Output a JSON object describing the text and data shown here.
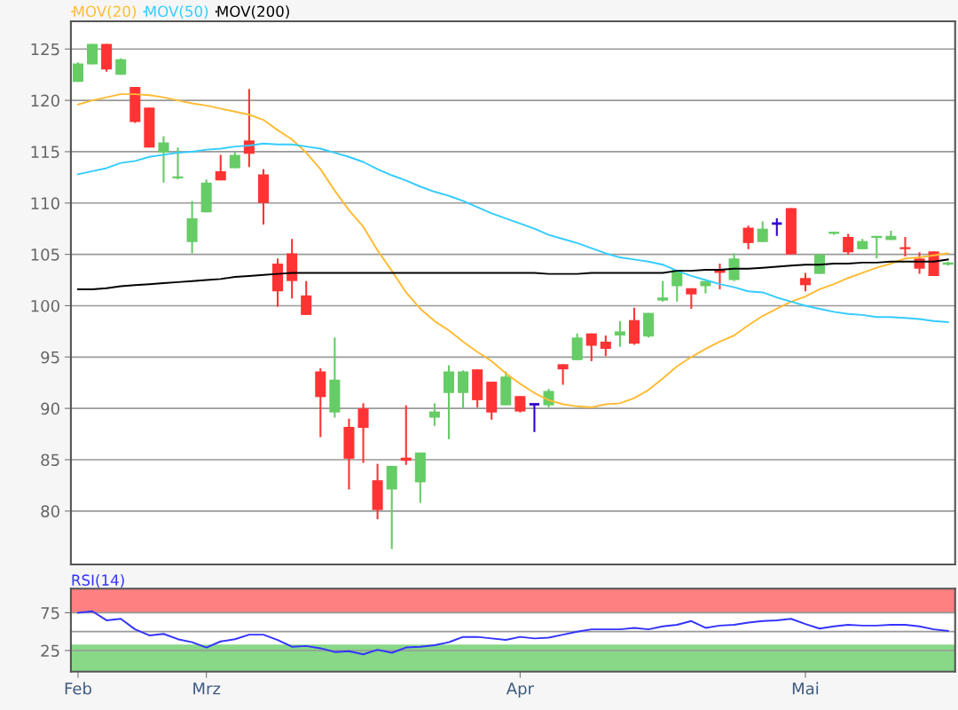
{
  "chart_data": [
    {
      "type": "candlestick",
      "legend": "top left",
      "grid": "y",
      "tick_labels": "y",
      "ylim": [
        74.8,
        127.7
      ],
      "yticks": [
        80,
        85,
        90,
        95,
        100,
        105,
        110,
        115,
        120,
        125
      ],
      "ohlc": [
        [
          121.8,
          123.7,
          121.8,
          123.6
        ],
        [
          123.5,
          125.5,
          123.5,
          125.5
        ],
        [
          125.5,
          125.5,
          122.8,
          123.0
        ],
        [
          122.5,
          124.1,
          122.5,
          124.0
        ],
        [
          121.3,
          121.3,
          117.8,
          117.9
        ],
        [
          119.3,
          119.3,
          115.4,
          115.4
        ],
        [
          114.9,
          116.5,
          112.0,
          115.9
        ],
        [
          112.4,
          115.4,
          112.3,
          112.6
        ],
        [
          106.2,
          110.2,
          105.1,
          108.5
        ],
        [
          109.1,
          112.3,
          109.1,
          112.0
        ],
        [
          113.1,
          114.7,
          112.2,
          112.2
        ],
        [
          113.4,
          115.0,
          113.4,
          114.7
        ],
        [
          116.1,
          121.1,
          113.5,
          114.8
        ],
        [
          112.8,
          113.3,
          107.9,
          110.0
        ],
        [
          104.1,
          104.6,
          99.9,
          101.4
        ],
        [
          105.1,
          106.5,
          100.7,
          102.4
        ],
        [
          101.0,
          102.4,
          99.1,
          99.1
        ],
        [
          93.6,
          93.9,
          87.2,
          91.1
        ],
        [
          89.6,
          96.9,
          89.1,
          92.8
        ],
        [
          88.2,
          89.0,
          82.1,
          85.1
        ],
        [
          90.0,
          90.5,
          84.7,
          88.1
        ],
        [
          83.0,
          84.6,
          79.2,
          80.1
        ],
        [
          82.1,
          84.4,
          76.3,
          84.4
        ],
        [
          85.2,
          90.3,
          84.5,
          84.9
        ],
        [
          82.8,
          85.7,
          80.8,
          85.7
        ],
        [
          89.1,
          90.5,
          88.3,
          89.7
        ],
        [
          91.5,
          94.2,
          87.0,
          93.6
        ],
        [
          91.5,
          93.7,
          90.0,
          93.6
        ],
        [
          93.8,
          93.8,
          90.1,
          90.8
        ],
        [
          92.6,
          92.6,
          88.9,
          89.6
        ],
        [
          90.3,
          93.6,
          90.3,
          93.1
        ],
        [
          91.2,
          91.2,
          89.6,
          89.7
        ],
        [
          90.4,
          90.4,
          87.7,
          90.4
        ],
        [
          90.3,
          91.9,
          90.1,
          91.7
        ],
        [
          94.3,
          94.3,
          92.3,
          93.8
        ],
        [
          94.7,
          97.3,
          94.7,
          96.9
        ],
        [
          97.3,
          97.3,
          94.6,
          96.1
        ],
        [
          96.5,
          97.1,
          95.1,
          95.8
        ],
        [
          97.1,
          98.5,
          96.0,
          97.5
        ],
        [
          98.6,
          99.8,
          96.2,
          96.3
        ],
        [
          97.0,
          99.3,
          96.9,
          99.3
        ],
        [
          100.5,
          102.4,
          100.4,
          100.8
        ],
        [
          101.9,
          103.5,
          100.4,
          103.5
        ],
        [
          101.7,
          101.7,
          99.7,
          101.1
        ],
        [
          101.9,
          102.4,
          101.2,
          102.4
        ],
        [
          103.5,
          104.1,
          101.6,
          103.2
        ],
        [
          102.5,
          105.1,
          102.4,
          104.6
        ],
        [
          107.6,
          107.8,
          105.5,
          106.1
        ],
        [
          106.2,
          108.2,
          106.2,
          107.5
        ],
        [
          108.0,
          108.5,
          106.8,
          108.0
        ],
        [
          109.5,
          109.5,
          105.0,
          105.0
        ],
        [
          102.7,
          103.2,
          101.4,
          102.0
        ],
        [
          103.1,
          105.0,
          103.1,
          105.0
        ],
        [
          107.0,
          107.2,
          106.9,
          107.2
        ],
        [
          106.7,
          107.0,
          105.0,
          105.2
        ],
        [
          105.5,
          106.5,
          105.5,
          106.3
        ],
        [
          106.6,
          106.8,
          104.6,
          106.8
        ],
        [
          106.4,
          107.3,
          106.4,
          106.8
        ],
        [
          105.7,
          106.7,
          104.8,
          105.5
        ],
        [
          104.6,
          105.2,
          103.1,
          103.6
        ],
        [
          105.3,
          105.3,
          102.9,
          102.9
        ],
        [
          104.0,
          104.3,
          103.9,
          104.2
        ]
      ],
      "colors": [
        "#66cc66",
        "#66cc66",
        "#ff3333",
        "#66cc66",
        "#ff3333",
        "#ff3333",
        "#66cc66",
        "#66cc66",
        "#66cc66",
        "#66cc66",
        "#ff3333",
        "#66cc66",
        "#ff3333",
        "#ff3333",
        "#ff3333",
        "#ff3333",
        "#ff3333",
        "#ff3333",
        "#66cc66",
        "#ff3333",
        "#ff3333",
        "#ff3333",
        "#66cc66",
        "#ff3333",
        "#66cc66",
        "#66cc66",
        "#66cc66",
        "#66cc66",
        "#ff3333",
        "#ff3333",
        "#66cc66",
        "#ff3333",
        "#3300cc",
        "#66cc66",
        "#ff3333",
        "#66cc66",
        "#ff3333",
        "#ff3333",
        "#66cc66",
        "#ff3333",
        "#66cc66",
        "#66cc66",
        "#66cc66",
        "#ff3333",
        "#66cc66",
        "#ff3333",
        "#66cc66",
        "#ff3333",
        "#66cc66",
        "#3300cc",
        "#ff3333",
        "#ff3333",
        "#66cc66",
        "#66cc66",
        "#ff3333",
        "#66cc66",
        "#66cc66",
        "#66cc66",
        "#ff3333",
        "#ff3333",
        "#ff3333",
        "#66cc66"
      ],
      "series": [
        {
          "name": "MOV(20)",
          "type": "line",
          "color": "#ffbb33",
          "values": [
            119.6,
            120.0,
            120.3,
            120.6,
            120.6,
            120.5,
            120.3,
            120.0,
            119.7,
            119.5,
            119.2,
            118.9,
            118.6,
            118.1,
            117.1,
            116.2,
            114.9,
            113.3,
            111.2,
            109.3,
            107.7,
            105.4,
            103.4,
            101.3,
            99.7,
            98.5,
            97.6,
            96.5,
            95.5,
            94.6,
            93.4,
            92.4,
            91.5,
            90.8,
            90.4,
            90.2,
            90.1,
            90.4,
            90.5,
            91.0,
            91.8,
            92.9,
            94.1,
            95.0,
            95.8,
            96.5,
            97.1,
            98.1,
            99.0,
            99.7,
            100.4,
            100.9,
            101.6,
            102.1,
            102.7,
            103.2,
            103.7,
            104.1,
            104.6,
            104.7,
            104.9,
            105.1
          ]
        },
        {
          "name": "MOV(50)",
          "type": "line",
          "color": "#33ccff",
          "values": [
            112.8,
            113.1,
            113.4,
            113.9,
            114.1,
            114.5,
            114.7,
            114.9,
            115.0,
            115.2,
            115.3,
            115.5,
            115.6,
            115.8,
            115.7,
            115.7,
            115.5,
            115.3,
            114.9,
            114.5,
            114.0,
            113.3,
            112.7,
            112.2,
            111.6,
            111.1,
            110.7,
            110.2,
            109.6,
            109.0,
            108.5,
            108.0,
            107.5,
            106.9,
            106.5,
            106.1,
            105.6,
            105.1,
            104.7,
            104.5,
            104.3,
            104.0,
            103.4,
            102.9,
            102.5,
            102.1,
            101.8,
            101.4,
            101.3,
            100.8,
            100.4,
            100.0,
            99.7,
            99.4,
            99.2,
            99.1,
            98.9,
            98.9,
            98.8,
            98.7,
            98.5,
            98.4
          ]
        },
        {
          "name": "MOV(200)",
          "type": "line",
          "color": "#000000",
          "values": [
            101.6,
            101.6,
            101.7,
            101.9,
            102.0,
            102.1,
            102.2,
            102.3,
            102.4,
            102.5,
            102.6,
            102.8,
            102.9,
            103.0,
            103.1,
            103.2,
            103.2,
            103.2,
            103.2,
            103.2,
            103.2,
            103.2,
            103.2,
            103.2,
            103.2,
            103.2,
            103.2,
            103.2,
            103.2,
            103.2,
            103.2,
            103.2,
            103.2,
            103.1,
            103.1,
            103.1,
            103.2,
            103.2,
            103.2,
            103.2,
            103.2,
            103.2,
            103.4,
            103.4,
            103.5,
            103.5,
            103.6,
            103.6,
            103.7,
            103.8,
            103.9,
            104.0,
            104.0,
            104.1,
            104.1,
            104.2,
            104.2,
            104.3,
            104.3,
            104.3,
            104.3,
            104.5
          ]
        }
      ]
    },
    {
      "type": "line",
      "title": "RSI(14)",
      "grid": "y",
      "categories": [
        "Feb",
        null,
        null,
        null,
        null,
        null,
        null,
        null,
        null,
        "Mrz",
        null,
        null,
        null,
        null,
        null,
        null,
        null,
        null,
        null,
        null,
        null,
        null,
        null,
        null,
        null,
        null,
        null,
        null,
        null,
        null,
        null,
        "Apr",
        null,
        null,
        null,
        null,
        null,
        null,
        null,
        null,
        null,
        null,
        null,
        null,
        null,
        null,
        null,
        null,
        null,
        null,
        null,
        "Mai",
        null,
        null,
        null,
        null,
        null,
        null,
        null,
        null,
        null,
        null
      ],
      "ylim": [
        -3,
        107
      ],
      "yticks": [
        25,
        75
      ],
      "bands": [
        {
          "axis": "y",
          "from": 75,
          "to": 107,
          "color": "#ff8080"
        },
        {
          "axis": "y",
          "from": -3,
          "to": 33,
          "color": "#88d888"
        }
      ],
      "ref_lines": [
        {
          "axis": "y",
          "value": 50,
          "color": "#999999"
        }
      ],
      "series": [
        {
          "color": "#3333ff",
          "values": [
            75,
            77,
            65,
            67,
            53,
            45,
            47,
            40,
            36,
            29,
            37,
            40,
            46,
            46,
            39,
            30,
            31,
            28,
            23,
            24,
            20,
            26,
            22,
            29,
            30,
            32,
            36,
            43,
            43,
            41,
            39,
            43,
            41,
            42,
            46,
            50,
            53,
            53,
            53,
            55,
            53,
            57,
            59,
            64,
            55,
            58,
            59,
            62,
            64,
            65,
            67,
            60,
            54,
            57,
            59,
            58,
            58,
            59,
            59,
            57,
            53,
            51
          ]
        }
      ]
    }
  ]
}
